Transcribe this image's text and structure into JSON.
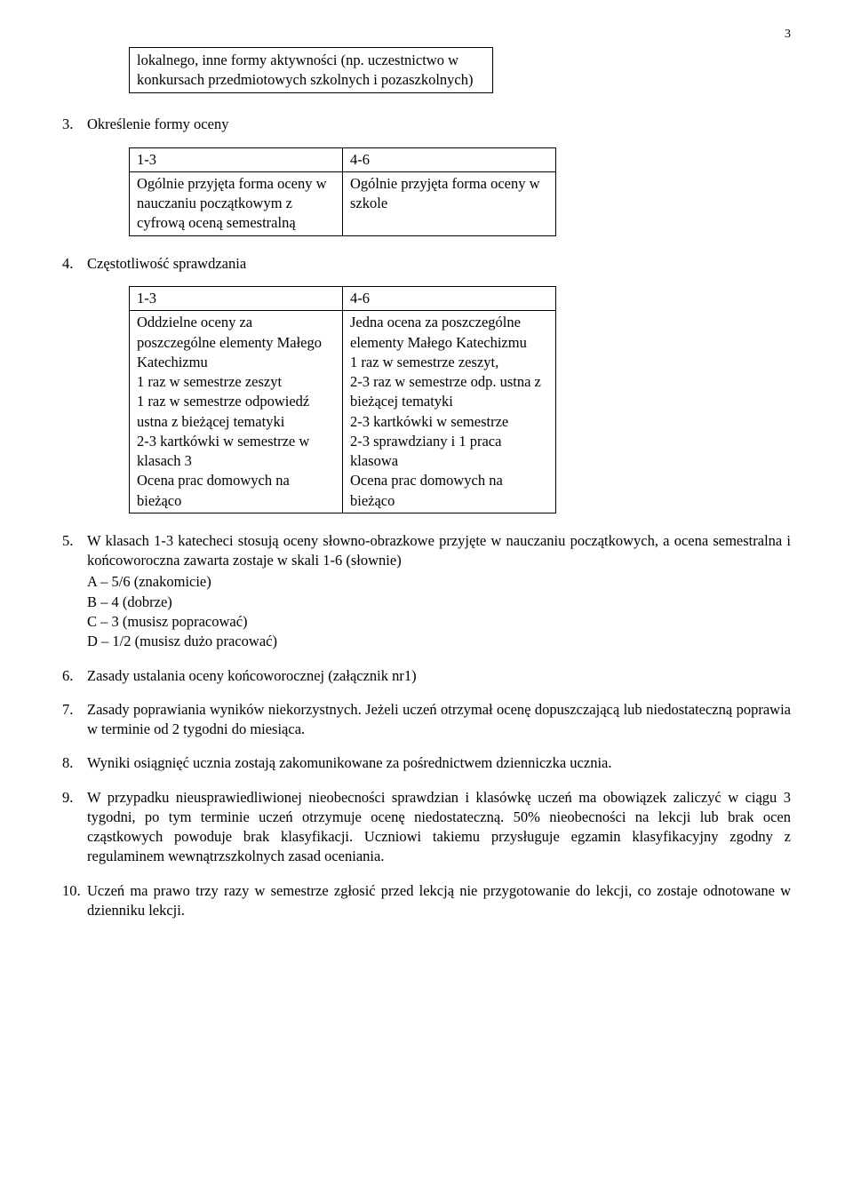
{
  "page_number": "3",
  "boxed_text": "lokalnego, inne formy aktywności (np. uczestnictwo w konkursach przedmiotowych szkolnych i pozaszkolnych)",
  "section3": {
    "num": "3.",
    "title": "Określenie formy oceny",
    "table": {
      "h1": "1-3",
      "h2": "4-6",
      "c1": "Ogólnie przyjęta forma oceny w nauczaniu początkowym z cyfrową oceną semestralną",
      "c2": "Ogólnie przyjęta forma oceny w szkole"
    }
  },
  "section4": {
    "num": "4.",
    "title": "Częstotliwość sprawdzania",
    "table": {
      "h1": "1-3",
      "h2": "4-6",
      "c1": "Oddzielne oceny za poszczególne elementy Małego Katechizmu\n1 raz w semestrze zeszyt\n1 raz w semestrze odpowiedź ustna z bieżącej tematyki\n2-3 kartkówki w semestrze w klasach 3\nOcena prac domowych na bieżąco",
      "c2": "Jedna ocena za poszczególne elementy Małego Katechizmu\n1 raz w semestrze zeszyt,\n2-3 raz w semestrze odp. ustna z bieżącej tematyki\n2-3 kartkówki w semestrze\n2-3 sprawdziany i 1 praca klasowa\nOcena prac domowych na bieżąco"
    }
  },
  "section5": {
    "num": "5.",
    "text": "W klasach 1-3 katecheci stosują oceny słowno-obrazkowe przyjęte w nauczaniu początkowych, a ocena semestralna i końcoworoczna zawarta zostaje w skali 1-6 (słownie)",
    "lines": [
      "A – 5/6  (znakomicie)",
      "B – 4     (dobrze)",
      "C – 3     (musisz popracować)",
      "D – 1/2  (musisz dużo pracować)"
    ]
  },
  "section6": {
    "num": "6.",
    "text": "Zasady ustalania oceny końcoworocznej (załącznik nr1)"
  },
  "section7": {
    "num": "7.",
    "text": "Zasady poprawiania wyników niekorzystnych. Jeżeli uczeń otrzymał ocenę dopuszczającą lub niedostateczną poprawia w terminie od 2 tygodni do miesiąca."
  },
  "section8": {
    "num": "8.",
    "text": "Wyniki osiągnięć ucznia zostają zakomunikowane za pośrednictwem dzienniczka ucznia."
  },
  "section9": {
    "num": "9.",
    "text": "W przypadku nieusprawiedliwionej nieobecności sprawdzian i klasówkę uczeń ma obowiązek zaliczyć w ciągu 3 tygodni, po tym terminie uczeń otrzymuje ocenę niedostateczną. 50% nieobecności na lekcji lub brak ocen cząstkowych powoduje brak klasyfikacji. Uczniowi takiemu przysługuje egzamin klasyfikacyjny zgodny z regulaminem wewnątrzszkolnych zasad oceniania."
  },
  "section10": {
    "num": "10.",
    "text": "Uczeń ma prawo trzy razy w semestrze zgłosić przed lekcją nie przygotowanie do lekcji, co zostaje odnotowane w dzienniku lekcji."
  }
}
